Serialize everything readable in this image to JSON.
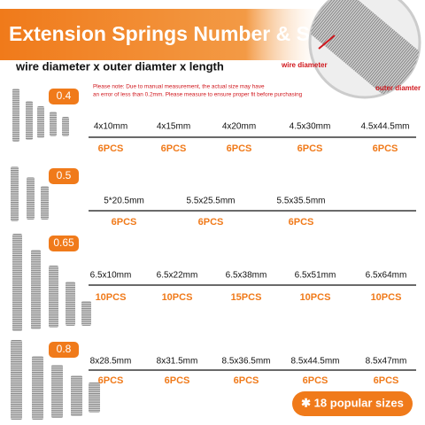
{
  "header": {
    "title": "Extension Springs Number & Size",
    "subtitle": "wire diameter x outer diamter x length",
    "note": [
      "Please note: Due to manual measurement, the actual size may have",
      "an error of less than 0.2mm.  Please measure to ensure proper fit before purchasing"
    ],
    "callouts": [
      "wire diameter",
      "outer diamter"
    ]
  },
  "groups": [
    {
      "wire": "0.4",
      "items": [
        {
          "size": "4x10mm",
          "count": "6PCS"
        },
        {
          "size": "4x15mm",
          "count": "6PCS"
        },
        {
          "size": "4x20mm",
          "count": "6PCS"
        },
        {
          "size": "4.5x30mm",
          "count": "6PCS"
        },
        {
          "size": "4.5x44.5mm",
          "count": "6PCS"
        }
      ]
    },
    {
      "wire": "0.5",
      "items": [
        {
          "size": "5*20.5mm",
          "count": "6PCS"
        },
        {
          "size": "5.5x25.5mm",
          "count": "6PCS"
        },
        {
          "size": "5.5x35.5mm",
          "count": "6PCS"
        }
      ]
    },
    {
      "wire": "0.65",
      "items": [
        {
          "size": "6.5x10mm",
          "count": "10PCS"
        },
        {
          "size": "6.5x22mm",
          "count": "10PCS"
        },
        {
          "size": "6.5x38mm",
          "count": "15PCS"
        },
        {
          "size": "6.5x51mm",
          "count": "10PCS"
        },
        {
          "size": "6.5x64mm",
          "count": "10PCS"
        }
      ]
    },
    {
      "wire": "0.8",
      "items": [
        {
          "size": "8x28.5mm",
          "count": "6PCS"
        },
        {
          "size": "8x31.5mm",
          "count": "6PCS"
        },
        {
          "size": "8.5x36.5mm",
          "count": "6PCS"
        },
        {
          "size": "8.5x44.5mm",
          "count": "6PCS"
        },
        {
          "size": "8.5x47mm",
          "count": "6PCS"
        }
      ]
    }
  ],
  "badge": "✱ 18 popular sizes"
}
